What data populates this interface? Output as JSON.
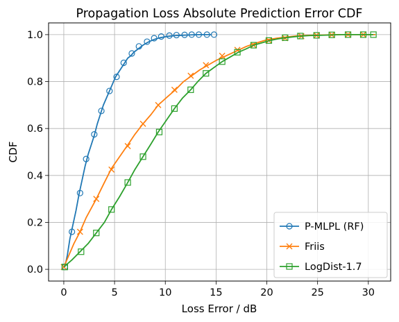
{
  "chart_data": {
    "type": "line",
    "title": "Propagation Loss Absolute Prediction Error CDF",
    "xlabel": "Loss Error / dB",
    "ylabel": "CDF",
    "xlim": [
      -1.5,
      32.2
    ],
    "ylim": [
      -0.05,
      1.05
    ],
    "xticks": [
      0,
      5,
      10,
      15,
      20,
      25,
      30
    ],
    "yticks": [
      0.0,
      0.2,
      0.4,
      0.6,
      0.8,
      1.0
    ],
    "xtick_labels": [
      "0",
      "5",
      "10",
      "15",
      "20",
      "25",
      "30"
    ],
    "ytick_labels": [
      "0.0",
      "0.2",
      "0.4",
      "0.6",
      "0.8",
      "1.0"
    ],
    "grid": true,
    "legend_position": "lower-right",
    "series": [
      {
        "name": "P-MLPL (RF)",
        "color": "#1f77b4",
        "marker": "circle",
        "x": [
          0.1,
          0.35,
          0.6,
          0.9,
          1.2,
          1.5,
          1.8,
          2.1,
          2.4,
          2.7,
          3.0,
          3.3,
          3.6,
          3.9,
          4.2,
          4.5,
          4.8,
          5.1,
          5.4,
          5.7,
          6.0,
          6.3,
          6.6,
          6.9,
          7.2,
          7.5,
          7.8,
          8.1,
          8.4,
          8.7,
          9.0,
          9.5,
          10.0,
          10.5,
          11.0,
          11.5,
          12.0,
          12.5,
          13.0,
          13.5,
          14.0,
          14.5
        ],
        "y": [
          0.01,
          0.06,
          0.13,
          0.19,
          0.25,
          0.32,
          0.38,
          0.44,
          0.49,
          0.53,
          0.57,
          0.62,
          0.66,
          0.7,
          0.73,
          0.76,
          0.79,
          0.82,
          0.84,
          0.86,
          0.88,
          0.9,
          0.91,
          0.925,
          0.935,
          0.945,
          0.955,
          0.963,
          0.97,
          0.976,
          0.981,
          0.987,
          0.991,
          0.994,
          0.996,
          0.997,
          0.998,
          0.999,
          0.9995,
          1.0,
          1.0,
          1.0
        ],
        "marker_x": [
          0.1,
          0.8,
          1.6,
          2.2,
          3.0,
          3.7,
          4.5,
          5.2,
          5.9,
          6.7,
          7.4,
          8.2,
          8.9,
          9.6,
          10.4,
          11.1,
          11.9,
          12.6,
          13.3,
          14.1,
          14.8
        ],
        "marker_y": [
          0.01,
          0.16,
          0.325,
          0.47,
          0.575,
          0.675,
          0.76,
          0.82,
          0.88,
          0.92,
          0.95,
          0.97,
          0.985,
          0.992,
          0.996,
          0.998,
          0.999,
          1.0,
          1.0,
          1.0,
          1.0
        ]
      },
      {
        "name": "Friis",
        "color": "#ff7f0e",
        "marker": "x",
        "x": [
          0.0,
          0.5,
          1.0,
          1.6,
          2.2,
          3.2,
          4.0,
          4.7,
          5.5,
          6.3,
          7.0,
          7.8,
          8.6,
          9.3,
          10.2,
          11.0,
          11.8,
          12.6,
          13.4,
          14.2,
          15.0,
          16.0,
          17.0,
          18.0,
          19.0,
          20.0,
          21.0,
          22.0,
          23.0,
          24.0,
          25.0,
          26.0,
          27.0,
          28.0,
          29.0,
          30.0,
          30.7
        ],
        "y": [
          0.01,
          0.06,
          0.11,
          0.16,
          0.22,
          0.3,
          0.37,
          0.43,
          0.48,
          0.53,
          0.575,
          0.62,
          0.66,
          0.7,
          0.735,
          0.765,
          0.8,
          0.825,
          0.85,
          0.87,
          0.89,
          0.91,
          0.93,
          0.95,
          0.965,
          0.978,
          0.985,
          0.99,
          0.995,
          0.997,
          0.998,
          0.999,
          1.0,
          1.0,
          1.0,
          1.0,
          1.0
        ],
        "marker_x": [
          0.0,
          1.6,
          3.2,
          4.7,
          6.3,
          7.8,
          9.3,
          10.9,
          12.5,
          14.0,
          15.6,
          17.1,
          18.7,
          20.2,
          21.8,
          23.4,
          24.9,
          26.4,
          28.0,
          29.5
        ],
        "marker_y": [
          0.01,
          0.16,
          0.3,
          0.425,
          0.525,
          0.62,
          0.7,
          0.765,
          0.825,
          0.87,
          0.91,
          0.935,
          0.955,
          0.975,
          0.985,
          0.993,
          0.997,
          0.999,
          1.0,
          1.0
        ]
      },
      {
        "name": "LogDist-1.7",
        "color": "#2ca02c",
        "marker": "square",
        "x": [
          0.0,
          0.8,
          1.6,
          2.4,
          3.2,
          4.0,
          4.7,
          5.5,
          6.3,
          7.0,
          7.8,
          8.6,
          9.3,
          10.1,
          10.9,
          11.7,
          12.5,
          13.2,
          14.0,
          14.8,
          15.6,
          16.4,
          17.2,
          18.0,
          18.7,
          19.5,
          20.3,
          21.1,
          21.9,
          22.7,
          23.4,
          24.2,
          25.0,
          25.8,
          26.6,
          27.3,
          28.1,
          28.9,
          29.7,
          30.5
        ],
        "y": [
          0.01,
          0.04,
          0.075,
          0.11,
          0.155,
          0.2,
          0.255,
          0.31,
          0.37,
          0.425,
          0.48,
          0.535,
          0.585,
          0.635,
          0.685,
          0.73,
          0.765,
          0.8,
          0.835,
          0.86,
          0.885,
          0.905,
          0.925,
          0.94,
          0.955,
          0.965,
          0.975,
          0.982,
          0.987,
          0.991,
          0.994,
          0.996,
          0.997,
          0.998,
          0.999,
          1.0,
          1.0,
          1.0,
          1.0,
          1.0
        ],
        "marker_x": [
          0.1,
          1.7,
          3.2,
          4.7,
          6.3,
          7.8,
          9.4,
          10.9,
          12.5,
          14.0,
          15.6,
          17.1,
          18.7,
          20.2,
          21.8,
          23.3,
          24.9,
          26.4,
          28.0,
          29.5,
          30.5
        ],
        "marker_y": [
          0.01,
          0.075,
          0.155,
          0.255,
          0.37,
          0.48,
          0.585,
          0.685,
          0.765,
          0.835,
          0.885,
          0.925,
          0.955,
          0.975,
          0.987,
          0.994,
          0.997,
          0.999,
          1.0,
          1.0,
          1.0
        ]
      }
    ]
  }
}
